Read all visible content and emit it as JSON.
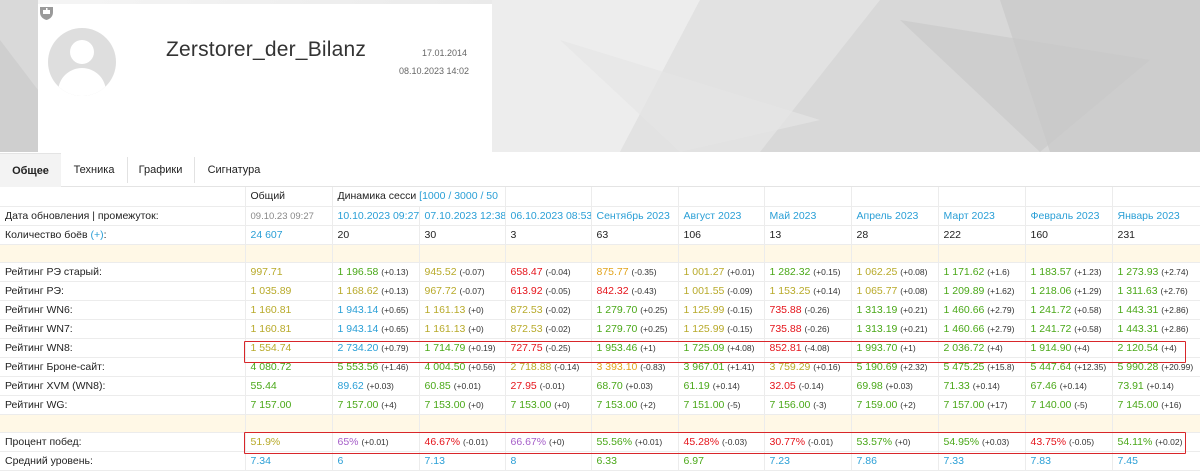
{
  "profile": {
    "name": "Zerstorer_der_Bilanz",
    "date_registered": "17.01.2014",
    "date_last": "08.10.2023 14:02"
  },
  "tabs": [
    "Общее",
    "Техника",
    "Графики",
    "Сигнатура"
  ],
  "header_row": {
    "total": "Общий",
    "dynamics": "Динамика сесси",
    "dynamics_link": "[1000 / 3000 / 50"
  },
  "rows": {
    "date": {
      "label": "Дата обновления | промежуток:",
      "total": "09.10.23 09:27",
      "cols": [
        "10.10.2023 09:27",
        "07.10.2023 12:38",
        "06.10.2023 08:53",
        "Сентябрь 2023",
        "Август 2023",
        "Май 2023",
        "Апрель 2023",
        "Март 2023",
        "Февраль 2023",
        "Январь 2023"
      ]
    },
    "battles": {
      "label": "Количество боёв",
      "label_link": "(+)",
      "label_colon": ":",
      "total": "24 607",
      "cols": [
        "20",
        "30",
        "3",
        "63",
        "106",
        "13",
        "28",
        "222",
        "160",
        "231"
      ]
    },
    "ratings": [
      {
        "label": "Рейтинг РЭ старый:",
        "total": "997.71",
        "cells": [
          [
            "1 196.58",
            "(+0.13)",
            "g"
          ],
          [
            "945.52",
            "(-0.07)",
            "y"
          ],
          [
            "658.47",
            "(-0.04)",
            "r"
          ],
          [
            "875.77",
            "(-0.35)",
            "o"
          ],
          [
            "1 001.27",
            "(+0.01)",
            "y"
          ],
          [
            "1 282.32",
            "(+0.15)",
            "g"
          ],
          [
            "1 062.25",
            "(+0.08)",
            "y"
          ],
          [
            "1 171.62",
            "(+1.6)",
            "g"
          ],
          [
            "1 183.57",
            "(+1.23)",
            "g"
          ],
          [
            "1 273.93",
            "(+2.74)",
            "g"
          ]
        ],
        "total_color": "y"
      },
      {
        "label": "Рейтинг РЭ:",
        "total": "1 035.89",
        "cells": [
          [
            "1 168.62",
            "(+0.13)",
            "y"
          ],
          [
            "967.72",
            "(-0.07)",
            "y"
          ],
          [
            "613.92",
            "(-0.05)",
            "r"
          ],
          [
            "842.32",
            "(-0.43)",
            "r"
          ],
          [
            "1 001.55",
            "(-0.09)",
            "y"
          ],
          [
            "1 153.25",
            "(+0.14)",
            "y"
          ],
          [
            "1 065.77",
            "(+0.08)",
            "y"
          ],
          [
            "1 209.89",
            "(+1.62)",
            "g"
          ],
          [
            "1 218.06",
            "(+1.29)",
            "g"
          ],
          [
            "1 311.63",
            "(+2.76)",
            "g"
          ]
        ],
        "total_color": "y"
      },
      {
        "label": "Рейтинг WN6:",
        "total": "1 160.81",
        "cells": [
          [
            "1 943.14",
            "(+0.65)",
            "b"
          ],
          [
            "1 161.13",
            "(+0)",
            "y"
          ],
          [
            "872.53",
            "(-0.02)",
            "y"
          ],
          [
            "1 279.70",
            "(+0.25)",
            "g"
          ],
          [
            "1 125.99",
            "(-0.15)",
            "y"
          ],
          [
            "735.88",
            "(-0.26)",
            "r"
          ],
          [
            "1 313.19",
            "(+0.21)",
            "g"
          ],
          [
            "1 460.66",
            "(+2.79)",
            "g"
          ],
          [
            "1 241.72",
            "(+0.58)",
            "g"
          ],
          [
            "1 443.31",
            "(+2.86)",
            "g"
          ]
        ],
        "total_color": "y"
      },
      {
        "label": "Рейтинг WN7:",
        "total": "1 160.81",
        "cells": [
          [
            "1 943.14",
            "(+0.65)",
            "b"
          ],
          [
            "1 161.13",
            "(+0)",
            "y"
          ],
          [
            "872.53",
            "(-0.02)",
            "y"
          ],
          [
            "1 279.70",
            "(+0.25)",
            "g"
          ],
          [
            "1 125.99",
            "(-0.15)",
            "y"
          ],
          [
            "735.88",
            "(-0.26)",
            "r"
          ],
          [
            "1 313.19",
            "(+0.21)",
            "g"
          ],
          [
            "1 460.66",
            "(+2.79)",
            "g"
          ],
          [
            "1 241.72",
            "(+0.58)",
            "g"
          ],
          [
            "1 443.31",
            "(+2.86)",
            "g"
          ]
        ],
        "total_color": "y"
      },
      {
        "label": "Рейтинг WN8:",
        "total": "1 554.74",
        "cells": [
          [
            "2 734.20",
            "(+0.79)",
            "b"
          ],
          [
            "1 714.79",
            "(+0.19)",
            "g"
          ],
          [
            "727.75",
            "(-0.25)",
            "r"
          ],
          [
            "1 953.46",
            "(+1)",
            "g"
          ],
          [
            "1 725.09",
            "(+4.08)",
            "g"
          ],
          [
            "852.81",
            "(-4.08)",
            "r"
          ],
          [
            "1 993.70",
            "(+1)",
            "g"
          ],
          [
            "2 036.72",
            "(+4)",
            "g"
          ],
          [
            "1 914.90",
            "(+4)",
            "g"
          ],
          [
            "2 120.54",
            "(+4)",
            "g"
          ]
        ],
        "total_color": "y"
      },
      {
        "label": "Рейтинг Броне-сайт:",
        "total": "4 080.72",
        "cells": [
          [
            "5 553.56",
            "(+1.46)",
            "g"
          ],
          [
            "4 004.50",
            "(+0.56)",
            "g"
          ],
          [
            "2 718.88",
            "(-0.14)",
            "y"
          ],
          [
            "3 393.10",
            "(-0.83)",
            "o"
          ],
          [
            "3 967.01",
            "(+1.41)",
            "g"
          ],
          [
            "3 759.29",
            "(+0.16)",
            "y"
          ],
          [
            "5 190.69",
            "(+2.32)",
            "g"
          ],
          [
            "5 475.25",
            "(+15.8)",
            "g"
          ],
          [
            "5 447.64",
            "(+12.35)",
            "g"
          ],
          [
            "5 990.28",
            "(+20.99)",
            "g"
          ]
        ],
        "total_color": "g"
      },
      {
        "label": "Рейтинг XVM (WN8):",
        "total": "55.44",
        "cells": [
          [
            "89.62",
            "(+0.03)",
            "b"
          ],
          [
            "60.85",
            "(+0.01)",
            "g"
          ],
          [
            "27.95",
            "(-0.01)",
            "r"
          ],
          [
            "68.70",
            "(+0.03)",
            "g"
          ],
          [
            "61.19",
            "(+0.14)",
            "g"
          ],
          [
            "32.05",
            "(-0.14)",
            "r"
          ],
          [
            "69.98",
            "(+0.03)",
            "g"
          ],
          [
            "71.33",
            "(+0.14)",
            "g"
          ],
          [
            "67.46",
            "(+0.14)",
            "g"
          ],
          [
            "73.91",
            "(+0.14)",
            "g"
          ]
        ],
        "total_color": "g"
      },
      {
        "label": "Рейтинг WG:",
        "total": "7 157.00",
        "cells": [
          [
            "7 157.00",
            "(+4)",
            "g"
          ],
          [
            "7 153.00",
            "(+0)",
            "g"
          ],
          [
            "7 153.00",
            "(+0)",
            "g"
          ],
          [
            "7 153.00",
            "(+2)",
            "g"
          ],
          [
            "7 151.00",
            "(-5)",
            "g"
          ],
          [
            "7 156.00",
            "(-3)",
            "g"
          ],
          [
            "7 159.00",
            "(+2)",
            "g"
          ],
          [
            "7 157.00",
            "(+17)",
            "g"
          ],
          [
            "7 140.00",
            "(-5)",
            "g"
          ],
          [
            "7 145.00",
            "(+16)",
            "g"
          ]
        ],
        "total_color": "g"
      }
    ],
    "winrate": {
      "label": "Процент побед:",
      "total": "51.9%",
      "total_color": "y",
      "cells": [
        [
          "65%",
          "(+0.01)",
          "p"
        ],
        [
          "46.67%",
          "(-0.01)",
          "r"
        ],
        [
          "66.67%",
          "(+0)",
          "p"
        ],
        [
          "55.56%",
          "(+0.01)",
          "g"
        ],
        [
          "45.28%",
          "(-0.03)",
          "r"
        ],
        [
          "30.77%",
          "(-0.01)",
          "r"
        ],
        [
          "53.57%",
          "(+0)",
          "g"
        ],
        [
          "54.95%",
          "(+0.03)",
          "g"
        ],
        [
          "43.75%",
          "(-0.05)",
          "r"
        ],
        [
          "54.11%",
          "(+0.02)",
          "g"
        ]
      ]
    },
    "level": {
      "label": "Средний уровень:",
      "total": "7.34",
      "cells": [
        [
          "6",
          "b"
        ],
        [
          "7.13",
          "b"
        ],
        [
          "8",
          "b"
        ],
        [
          "6.33",
          "g"
        ],
        [
          "6.97",
          "g"
        ],
        [
          "7.23",
          "b"
        ],
        [
          "7.86",
          "b"
        ],
        [
          "7.33",
          "b"
        ],
        [
          "7.83",
          "b"
        ],
        [
          "7.45",
          "b"
        ]
      ]
    }
  },
  "colors": {
    "yellow": "#b8aa2a",
    "green": "#4aa818",
    "blue": "#2a9fd6",
    "red": "#e5141b",
    "orange": "#e2a41c",
    "purple": "#a55ec8",
    "highlight": "#d8262a"
  }
}
